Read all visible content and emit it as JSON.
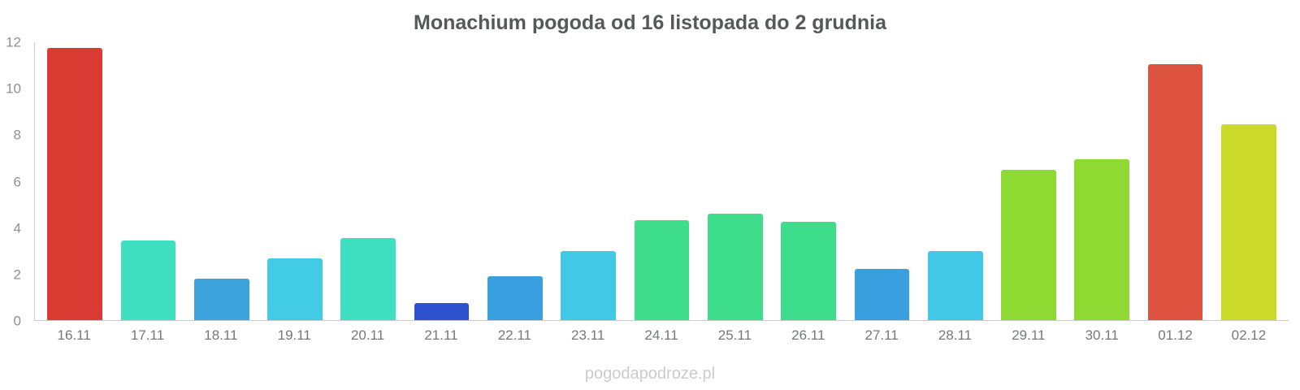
{
  "page": {
    "watermark": "pogodapodroze.pl"
  },
  "chart_data": {
    "type": "bar",
    "title": "Monachium pogoda od 16 listopada do 2 grudnia",
    "categories": [
      "16.11",
      "17.11",
      "18.11",
      "19.11",
      "20.11",
      "21.11",
      "22.11",
      "23.11",
      "24.11",
      "25.11",
      "26.11",
      "27.11",
      "28.11",
      "29.11",
      "30.11",
      "01.12",
      "02.12"
    ],
    "values": [
      11.75,
      3.45,
      1.8,
      2.65,
      3.55,
      0.75,
      1.9,
      3.0,
      4.3,
      4.6,
      4.25,
      2.2,
      3.0,
      6.5,
      6.95,
      11.05,
      8.45
    ],
    "bar_colors": [
      "#d93a31",
      "#3fe0c1",
      "#3da3dd",
      "#41cbe5",
      "#3fe0c1",
      "#2d50cf",
      "#3a9fdf",
      "#40c8e6",
      "#3edd8b",
      "#3edd8b",
      "#3edd8b",
      "#3a9fdf",
      "#40c8e6",
      "#8ed932",
      "#8ed932",
      "#dd5340",
      "#cbda28"
    ],
    "xlabel": "",
    "ylabel": "",
    "ylim": [
      0,
      12
    ],
    "yticks": [
      0,
      2,
      4,
      6,
      8,
      10,
      12
    ],
    "grid": false,
    "legend": "none"
  },
  "colors": {
    "title": "#57585a",
    "y_tick_label": "#909090",
    "x_tick_label": "#76777a",
    "axis_line": "#ccccccc",
    "watermark": "#cbcbcb",
    "background": "#ffffff"
  }
}
